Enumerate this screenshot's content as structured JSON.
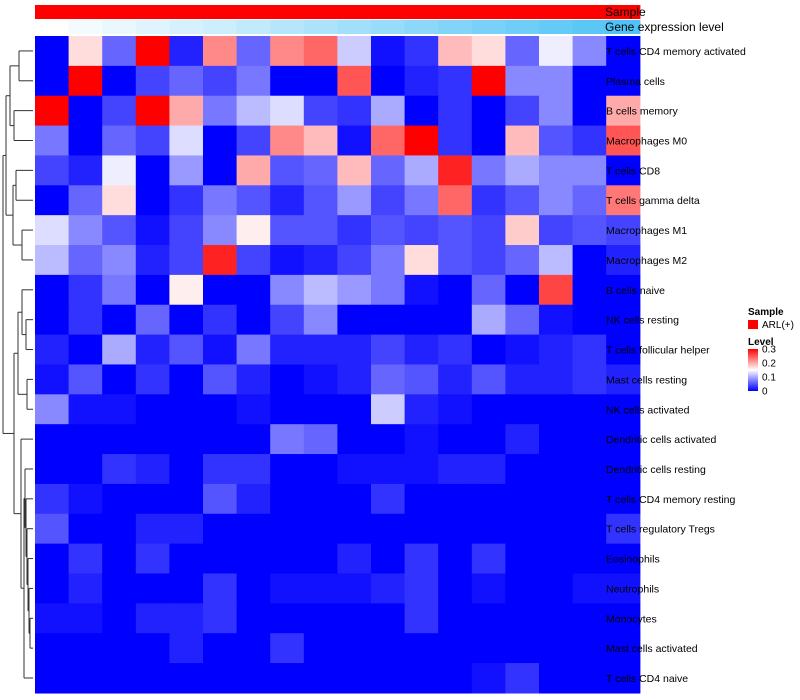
{
  "chart_data": {
    "type": "heatmap",
    "title": "",
    "annotations": [
      {
        "name": "Sample",
        "values": [
          "ARL(+)",
          "ARL(+)",
          "ARL(+)",
          "ARL(+)",
          "ARL(+)",
          "ARL(+)",
          "ARL(+)",
          "ARL(+)",
          "ARL(+)",
          "ARL(+)",
          "ARL(+)",
          "ARL(+)",
          "ARL(+)",
          "ARL(+)",
          "ARL(+)",
          "ARL(+)",
          "ARL(+)",
          "ARL(+)"
        ]
      },
      {
        "name": "Gene expression level",
        "values": [
          0.0,
          0.06,
          0.12,
          0.18,
          0.24,
          0.29,
          0.35,
          0.41,
          0.47,
          0.53,
          0.59,
          0.65,
          0.71,
          0.76,
          0.82,
          0.88,
          0.94,
          1.0
        ]
      }
    ],
    "rows": [
      "T cells CD4 memory activated",
      "Plasma cells",
      "B cells memory",
      "Macrophages M0",
      "T cells CD8",
      "T cells gamma delta",
      "Macrophages M1",
      "Macrophages M2",
      "B cells naive",
      "NK cells resting",
      "T cells follicular helper",
      "Mast cells resting",
      "NK cells activated",
      "Dendritic cells activated",
      "Dendritic cells resting",
      "T cells CD4 memory resting",
      "T cells regulatory  Tregs",
      "Eosinophils",
      "Neutrophils",
      "Monocytes",
      "Mast cells activated",
      "T cells CD4 naive"
    ],
    "values": [
      [
        0.0,
        0.17,
        0.06,
        0.3,
        0.02,
        0.22,
        0.06,
        0.22,
        0.24,
        0.12,
        0.01,
        0.03,
        0.19,
        0.17,
        0.06,
        0.14,
        0.08,
        0.0
      ],
      [
        0.0,
        0.3,
        0.0,
        0.04,
        0.06,
        0.04,
        0.07,
        0.0,
        0.0,
        0.25,
        0.0,
        0.02,
        0.03,
        0.3,
        0.08,
        0.08,
        0.0,
        0.0
      ],
      [
        0.3,
        0.0,
        0.04,
        0.3,
        0.2,
        0.07,
        0.11,
        0.13,
        0.04,
        0.03,
        0.1,
        0.0,
        0.03,
        0.0,
        0.04,
        0.08,
        0.0,
        0.2
      ],
      [
        0.07,
        0.0,
        0.06,
        0.04,
        0.13,
        0.0,
        0.04,
        0.22,
        0.19,
        0.01,
        0.24,
        0.3,
        0.03,
        0.0,
        0.19,
        0.05,
        0.03,
        0.25
      ],
      [
        0.04,
        0.02,
        0.14,
        0.0,
        0.09,
        0.0,
        0.2,
        0.05,
        0.06,
        0.19,
        0.06,
        0.1,
        0.28,
        0.07,
        0.1,
        0.08,
        0.08,
        0.0
      ],
      [
        0.0,
        0.06,
        0.17,
        0.0,
        0.03,
        0.07,
        0.05,
        0.02,
        0.05,
        0.09,
        0.04,
        0.07,
        0.24,
        0.03,
        0.05,
        0.08,
        0.06,
        0.23
      ],
      [
        0.13,
        0.08,
        0.05,
        0.01,
        0.04,
        0.08,
        0.16,
        0.05,
        0.05,
        0.03,
        0.05,
        0.04,
        0.05,
        0.04,
        0.18,
        0.04,
        0.05,
        0.04
      ],
      [
        0.11,
        0.06,
        0.08,
        0.02,
        0.04,
        0.28,
        0.04,
        0.01,
        0.02,
        0.04,
        0.07,
        0.17,
        0.05,
        0.04,
        0.06,
        0.11,
        0.0,
        0.02
      ],
      [
        0.0,
        0.03,
        0.07,
        0.0,
        0.16,
        0.0,
        0.0,
        0.08,
        0.11,
        0.09,
        0.07,
        0.01,
        0.0,
        0.06,
        0.0,
        0.26,
        0.0,
        0.0
      ],
      [
        0.0,
        0.03,
        0.0,
        0.06,
        0.0,
        0.03,
        0.0,
        0.04,
        0.08,
        0.0,
        0.0,
        0.0,
        0.0,
        0.1,
        0.06,
        0.01,
        0.0,
        0.0
      ],
      [
        0.02,
        0.0,
        0.1,
        0.02,
        0.05,
        0.01,
        0.07,
        0.02,
        0.02,
        0.02,
        0.04,
        0.02,
        0.03,
        0.0,
        0.01,
        0.02,
        0.03,
        0.0
      ],
      [
        0.01,
        0.05,
        0.0,
        0.03,
        0.0,
        0.05,
        0.02,
        0.0,
        0.01,
        0.02,
        0.06,
        0.05,
        0.02,
        0.05,
        0.02,
        0.02,
        0.03,
        0.02
      ],
      [
        0.08,
        0.01,
        0.01,
        0.0,
        0.0,
        0.0,
        0.01,
        0.0,
        0.0,
        0.0,
        0.12,
        0.02,
        0.01,
        0.0,
        0.0,
        0.0,
        0.0,
        0.0
      ],
      [
        0.0,
        0.0,
        0.0,
        0.0,
        0.0,
        0.0,
        0.0,
        0.07,
        0.06,
        0.0,
        0.0,
        0.01,
        0.0,
        0.0,
        0.02,
        0.0,
        0.0,
        0.0
      ],
      [
        0.0,
        0.0,
        0.03,
        0.02,
        0.0,
        0.03,
        0.03,
        0.0,
        0.0,
        0.01,
        0.01,
        0.01,
        0.02,
        0.02,
        0.0,
        0.0,
        0.0,
        0.0
      ],
      [
        0.03,
        0.01,
        0.0,
        0.0,
        0.0,
        0.05,
        0.02,
        0.0,
        0.0,
        0.0,
        0.03,
        0.0,
        0.0,
        0.0,
        0.0,
        0.0,
        0.0,
        0.0
      ],
      [
        0.05,
        0.0,
        0.0,
        0.02,
        0.02,
        0.0,
        0.0,
        0.0,
        0.0,
        0.0,
        0.0,
        0.0,
        0.0,
        0.0,
        0.0,
        0.0,
        0.0,
        0.03
      ],
      [
        0.0,
        0.03,
        0.0,
        0.03,
        0.0,
        0.0,
        0.0,
        0.0,
        0.0,
        0.02,
        0.0,
        0.03,
        0.0,
        0.03,
        0.0,
        0.0,
        0.0,
        0.0
      ],
      [
        0.0,
        0.02,
        0.0,
        0.0,
        0.0,
        0.03,
        0.0,
        0.01,
        0.01,
        0.01,
        0.02,
        0.03,
        0.0,
        0.01,
        0.0,
        0.0,
        0.01,
        0.01
      ],
      [
        0.01,
        0.01,
        0.0,
        0.02,
        0.02,
        0.03,
        0.0,
        0.0,
        0.0,
        0.0,
        0.0,
        0.03,
        0.0,
        0.0,
        0.0,
        0.0,
        0.0,
        0.0
      ],
      [
        0.0,
        0.0,
        0.0,
        0.0,
        0.02,
        0.0,
        0.0,
        0.03,
        0.0,
        0.0,
        0.0,
        0.0,
        0.0,
        0.0,
        0.0,
        0.0,
        0.0,
        0.0
      ],
      [
        0.0,
        0.0,
        0.0,
        0.0,
        0.0,
        0.0,
        0.0,
        0.0,
        0.0,
        0.0,
        0.0,
        0.0,
        0.0,
        0.01,
        0.03,
        0.0,
        0.0,
        0.0
      ]
    ],
    "color_scale": {
      "low": "#0000FF",
      "mid": "#FFFFFF",
      "high": "#FF0000",
      "min": 0,
      "max": 0.3
    },
    "ann_colors": {
      "sample": "#FF0000",
      "expr_low": "#FFFFFF",
      "expr_high": "#4FC3F7"
    },
    "legend": {
      "sample_title": "Sample",
      "sample_entry": "ARL(+)",
      "level_title": "Level",
      "ticks": [
        0.3,
        0.2,
        0.1,
        0
      ],
      "tick_labels": [
        "0.3",
        "0.2",
        "0.1",
        "0"
      ]
    },
    "row_dendrogram": true
  }
}
